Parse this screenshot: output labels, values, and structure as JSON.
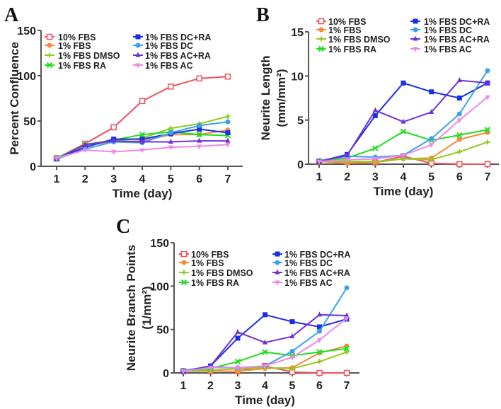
{
  "chart_data": [
    {
      "type": "line",
      "panel_label": "A",
      "xlabel": "Time (day)",
      "ylabel": "Percent Confluence",
      "ylabel2": "",
      "x": [
        1,
        2,
        3,
        4,
        5,
        6,
        7
      ],
      "ylim": [
        0,
        150
      ],
      "yticks": [
        0,
        50,
        100,
        150
      ],
      "legend_placement": "top-left",
      "series": [
        {
          "name": "10% FBS",
          "color": "#f0505a",
          "marker": "open-square",
          "values": [
            9,
            25,
            43,
            72,
            88,
            97,
            99
          ]
        },
        {
          "name": "1% FBS",
          "color": "#f58a3c",
          "marker": "circle",
          "values": [
            9,
            23,
            27,
            28,
            35,
            35,
            40
          ]
        },
        {
          "name": "1% FBS DMSO",
          "color": "#8fcc1e",
          "marker": "plus",
          "values": [
            9,
            24,
            28,
            31,
            42,
            47,
            55
          ]
        },
        {
          "name": "1% FBS RA",
          "color": "#22dd22",
          "marker": "cross",
          "values": [
            9,
            24,
            29,
            35,
            38,
            35,
            34
          ]
        },
        {
          "name": "1% FBS DC+RA",
          "color": "#1a2ee6",
          "marker": "square",
          "values": [
            8,
            21,
            30,
            30,
            36,
            41,
            37
          ]
        },
        {
          "name": "1% FBS DC",
          "color": "#3ea0f0",
          "marker": "circle",
          "values": [
            8,
            19,
            27,
            26,
            37,
            45,
            49
          ]
        },
        {
          "name": "1% FBS AC+RA",
          "color": "#7030d8",
          "marker": "triangle",
          "values": [
            8,
            24,
            28,
            27,
            27,
            28,
            28
          ]
        },
        {
          "name": "1% FBS AC",
          "color": "#ee88e8",
          "marker": "triangle-down",
          "values": [
            9,
            18,
            16,
            18,
            21,
            22,
            24
          ]
        }
      ]
    },
    {
      "type": "line",
      "panel_label": "B",
      "xlabel": "Time (day)",
      "ylabel": "Neurite Length",
      "ylabel2": "(mm/mm²)",
      "x": [
        1,
        2,
        3,
        4,
        5,
        6,
        7
      ],
      "ylim": [
        0,
        15
      ],
      "yticks": [
        0,
        5,
        10,
        15
      ],
      "legend_placement": "top-left",
      "series": [
        {
          "name": "10% FBS",
          "color": "#f0505a",
          "marker": "open-square",
          "values": [
            0.3,
            0.3,
            0.2,
            0.9,
            0.1,
            0,
            0
          ]
        },
        {
          "name": "1% FBS",
          "color": "#f58a3c",
          "marker": "circle",
          "values": [
            0.3,
            0.1,
            0.2,
            0.6,
            0.7,
            2.8,
            3.6
          ]
        },
        {
          "name": "1% FBS DMSO",
          "color": "#8fcc1e",
          "marker": "plus",
          "values": [
            0.3,
            0.3,
            0.3,
            0.6,
            0.5,
            1.4,
            2.5
          ]
        },
        {
          "name": "1% FBS RA",
          "color": "#22dd22",
          "marker": "cross",
          "values": [
            0.3,
            0.7,
            1.8,
            3.7,
            2.7,
            3.3,
            3.9
          ]
        },
        {
          "name": "1% FBS DC+RA",
          "color": "#1a2ee6",
          "marker": "square",
          "values": [
            0.3,
            1.1,
            5.5,
            9.2,
            8.2,
            7.5,
            9.2
          ]
        },
        {
          "name": "1% FBS DC",
          "color": "#3ea0f0",
          "marker": "circle",
          "values": [
            0.4,
            0.9,
            0.8,
            1.0,
            2.9,
            5.7,
            10.6
          ]
        },
        {
          "name": "1% FBS AC+RA",
          "color": "#7030d8",
          "marker": "triangle",
          "values": [
            0.3,
            1.0,
            6.1,
            4.8,
            5.9,
            9.5,
            9.2
          ]
        },
        {
          "name": "1% FBS AC",
          "color": "#ee88e8",
          "marker": "triangle-down",
          "values": [
            0.3,
            0.5,
            0.6,
            1.0,
            2.2,
            5.0,
            7.6
          ]
        }
      ]
    },
    {
      "type": "line",
      "panel_label": "C",
      "xlabel": "Time (day)",
      "ylabel": "Neurite Branch Points",
      "ylabel2": "(1/mm²)",
      "x": [
        1,
        2,
        3,
        4,
        5,
        6,
        7
      ],
      "ylim": [
        0,
        150
      ],
      "yticks": [
        0,
        50,
        100,
        150
      ],
      "legend_placement": "top-left",
      "series": [
        {
          "name": "10% FBS",
          "color": "#f0505a",
          "marker": "open-square",
          "values": [
            2,
            2,
            2,
            8,
            1,
            0,
            0
          ]
        },
        {
          "name": "1% FBS",
          "color": "#f58a3c",
          "marker": "circle",
          "values": [
            2,
            2,
            2,
            5,
            6,
            23,
            31
          ]
        },
        {
          "name": "1% FBS DMSO",
          "color": "#8fcc1e",
          "marker": "plus",
          "values": [
            2,
            3,
            5,
            6,
            5,
            13,
            24
          ]
        },
        {
          "name": "1% FBS RA",
          "color": "#22dd22",
          "marker": "cross",
          "values": [
            2,
            5,
            13,
            24,
            20,
            24,
            28
          ]
        },
        {
          "name": "1% FBS DC+RA",
          "color": "#1a2ee6",
          "marker": "square",
          "values": [
            2,
            8,
            40,
            67,
            59,
            53,
            62
          ]
        },
        {
          "name": "1% FBS DC",
          "color": "#3ea0f0",
          "marker": "circle",
          "values": [
            3,
            7,
            6,
            8,
            25,
            48,
            98
          ]
        },
        {
          "name": "1% FBS AC+RA",
          "color": "#7030d8",
          "marker": "triangle",
          "values": [
            2,
            8,
            47,
            35,
            42,
            67,
            66
          ]
        },
        {
          "name": "1% FBS AC",
          "color": "#ee88e8",
          "marker": "triangle-down",
          "values": [
            2,
            6,
            6,
            8,
            18,
            38,
            63
          ]
        }
      ]
    }
  ]
}
